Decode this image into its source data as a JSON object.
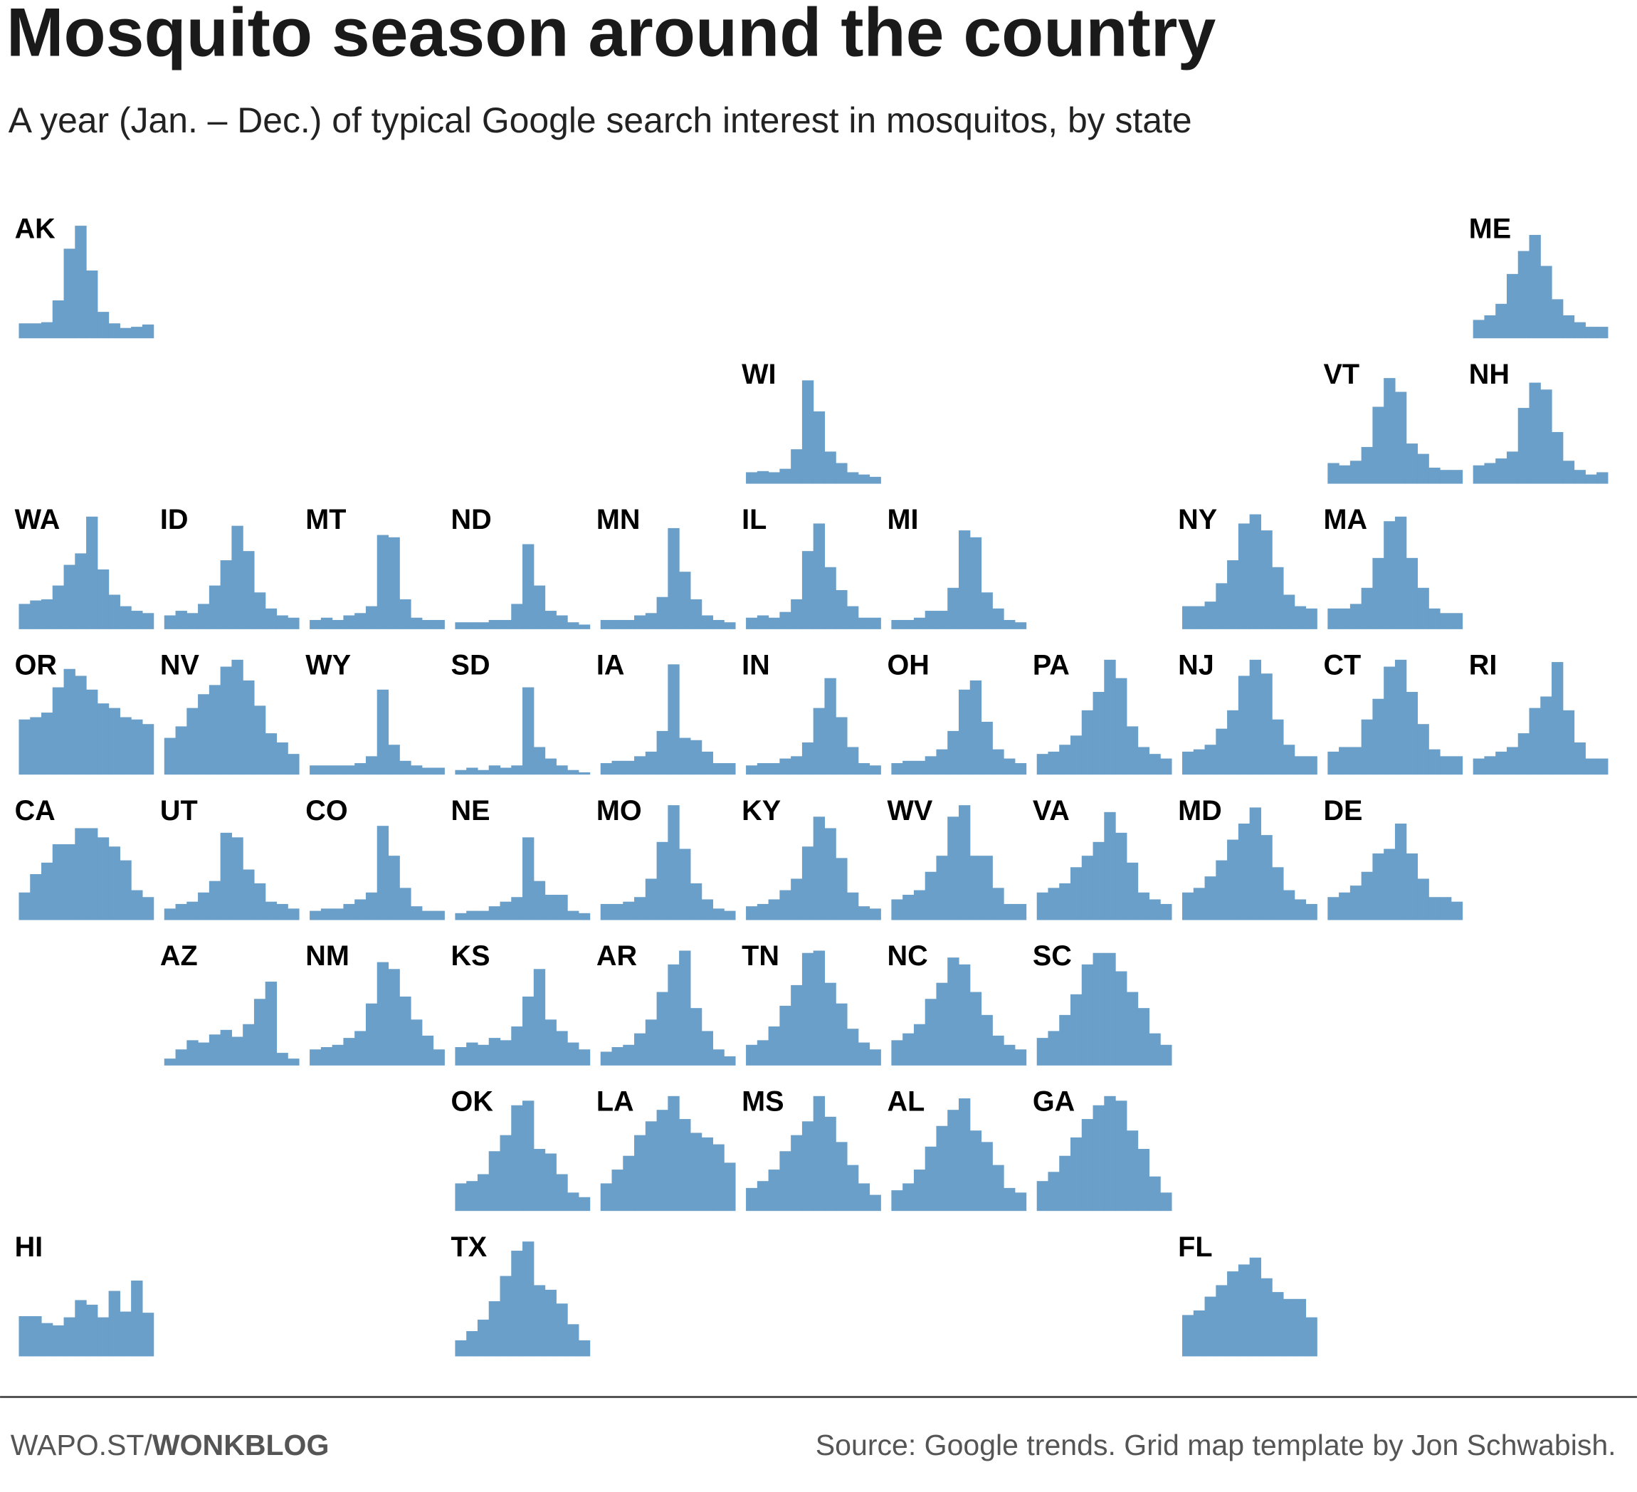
{
  "chart_data": {
    "type": "bar",
    "title": "Mosquito season around the country",
    "subtitle": "A year (Jan. – Dec.) of typical Google search interest in mosquitos, by state",
    "footer_brand": "WAPO.ST/",
    "footer_brand_bold": "WONKBLOG",
    "source": "Source: Google trends. Grid map template by Jon Schwabish.",
    "color": "#6a9fc9",
    "ylim": [
      0,
      100
    ],
    "series": [
      {
        "name": "AK",
        "values": [
          13,
          13,
          14,
          33,
          78,
          98,
          59,
          23,
          13,
          9,
          10,
          12
        ]
      },
      {
        "name": "ME",
        "values": [
          16,
          20,
          30,
          56,
          76,
          90,
          63,
          34,
          20,
          14,
          10,
          10
        ]
      },
      {
        "name": "WI",
        "values": [
          10,
          11,
          10,
          13,
          30,
          90,
          63,
          28,
          18,
          10,
          8,
          6
        ]
      },
      {
        "name": "VT",
        "values": [
          18,
          16,
          20,
          32,
          67,
          92,
          80,
          35,
          26,
          14,
          12,
          12
        ]
      },
      {
        "name": "NH",
        "values": [
          16,
          18,
          22,
          28,
          66,
          88,
          82,
          45,
          20,
          12,
          8,
          10
        ]
      },
      {
        "name": "WA",
        "values": [
          22,
          25,
          26,
          38,
          56,
          66,
          98,
          52,
          30,
          20,
          16,
          14
        ]
      },
      {
        "name": "ID",
        "values": [
          12,
          16,
          14,
          22,
          38,
          60,
          90,
          68,
          32,
          18,
          12,
          10
        ]
      },
      {
        "name": "MT",
        "values": [
          8,
          10,
          8,
          12,
          14,
          20,
          82,
          80,
          26,
          10,
          8,
          8
        ]
      },
      {
        "name": "ND",
        "values": [
          6,
          6,
          6,
          8,
          8,
          22,
          74,
          38,
          16,
          12,
          6,
          4
        ]
      },
      {
        "name": "MN",
        "values": [
          8,
          8,
          8,
          12,
          14,
          28,
          88,
          50,
          26,
          12,
          8,
          6
        ]
      },
      {
        "name": "IL",
        "values": [
          10,
          12,
          10,
          15,
          26,
          68,
          92,
          54,
          34,
          20,
          10,
          10
        ]
      },
      {
        "name": "MI",
        "values": [
          8,
          8,
          10,
          16,
          16,
          36,
          86,
          80,
          32,
          18,
          8,
          6
        ]
      },
      {
        "name": "NY",
        "values": [
          20,
          20,
          24,
          40,
          60,
          92,
          100,
          86,
          54,
          30,
          20,
          18
        ]
      },
      {
        "name": "MA",
        "values": [
          18,
          18,
          22,
          36,
          62,
          94,
          98,
          62,
          36,
          18,
          14,
          14
        ]
      },
      {
        "name": "OR",
        "values": [
          48,
          50,
          54,
          76,
          92,
          86,
          74,
          62,
          58,
          50,
          48,
          44
        ]
      },
      {
        "name": "NV",
        "values": [
          32,
          42,
          58,
          70,
          78,
          94,
          100,
          82,
          60,
          36,
          28,
          18
        ]
      },
      {
        "name": "WY",
        "values": [
          8,
          8,
          8,
          8,
          10,
          16,
          74,
          26,
          12,
          8,
          6,
          6
        ]
      },
      {
        "name": "SD",
        "values": [
          4,
          6,
          4,
          8,
          6,
          8,
          76,
          24,
          14,
          8,
          4,
          2
        ]
      },
      {
        "name": "IA",
        "values": [
          10,
          12,
          12,
          16,
          20,
          38,
          96,
          32,
          30,
          20,
          10,
          10
        ]
      },
      {
        "name": "IN",
        "values": [
          8,
          10,
          10,
          14,
          16,
          28,
          58,
          84,
          50,
          24,
          10,
          8
        ]
      },
      {
        "name": "OH",
        "values": [
          10,
          12,
          12,
          16,
          22,
          38,
          74,
          82,
          46,
          22,
          14,
          10
        ]
      },
      {
        "name": "PA",
        "values": [
          18,
          20,
          26,
          34,
          56,
          72,
          100,
          84,
          42,
          24,
          18,
          14
        ]
      },
      {
        "name": "NJ",
        "values": [
          20,
          22,
          26,
          40,
          56,
          86,
          100,
          88,
          48,
          26,
          16,
          16
        ]
      },
      {
        "name": "CT",
        "values": [
          20,
          24,
          24,
          48,
          66,
          94,
          100,
          72,
          44,
          22,
          16,
          16
        ]
      },
      {
        "name": "RI",
        "values": [
          14,
          16,
          20,
          24,
          36,
          58,
          68,
          98,
          56,
          28,
          14,
          14
        ]
      },
      {
        "name": "CA",
        "values": [
          24,
          40,
          50,
          66,
          66,
          80,
          80,
          72,
          64,
          52,
          26,
          20
        ]
      },
      {
        "name": "UT",
        "values": [
          10,
          14,
          16,
          24,
          34,
          76,
          72,
          44,
          32,
          16,
          14,
          10
        ]
      },
      {
        "name": "CO",
        "values": [
          8,
          10,
          10,
          14,
          18,
          24,
          82,
          56,
          28,
          12,
          8,
          8
        ]
      },
      {
        "name": "NE",
        "values": [
          6,
          8,
          8,
          12,
          16,
          20,
          72,
          34,
          22,
          22,
          8,
          6
        ]
      },
      {
        "name": "MO",
        "values": [
          14,
          14,
          16,
          20,
          36,
          68,
          100,
          62,
          32,
          18,
          10,
          8
        ]
      },
      {
        "name": "KY",
        "values": [
          12,
          14,
          18,
          26,
          36,
          64,
          90,
          80,
          54,
          24,
          12,
          10
        ]
      },
      {
        "name": "WV",
        "values": [
          18,
          22,
          26,
          42,
          56,
          90,
          100,
          56,
          56,
          28,
          14,
          14
        ]
      },
      {
        "name": "VA",
        "values": [
          24,
          28,
          32,
          46,
          56,
          68,
          94,
          76,
          50,
          24,
          18,
          14
        ]
      },
      {
        "name": "MD",
        "values": [
          24,
          28,
          38,
          52,
          70,
          84,
          98,
          74,
          46,
          26,
          18,
          14
        ]
      },
      {
        "name": "DE",
        "values": [
          20,
          24,
          30,
          42,
          58,
          62,
          84,
          58,
          36,
          20,
          20,
          16
        ]
      },
      {
        "name": "AZ",
        "values": [
          6,
          14,
          22,
          20,
          27,
          31,
          25,
          36,
          58,
          73,
          11,
          6
        ]
      },
      {
        "name": "NM",
        "values": [
          14,
          16,
          18,
          24,
          30,
          54,
          90,
          84,
          60,
          40,
          26,
          14
        ]
      },
      {
        "name": "KS",
        "values": [
          16,
          20,
          18,
          24,
          22,
          34,
          60,
          84,
          40,
          30,
          20,
          14
        ]
      },
      {
        "name": "AR",
        "values": [
          12,
          16,
          18,
          28,
          40,
          64,
          88,
          100,
          50,
          30,
          14,
          8
        ]
      },
      {
        "name": "TN",
        "values": [
          18,
          22,
          34,
          52,
          70,
          98,
          100,
          72,
          54,
          32,
          20,
          14
        ]
      },
      {
        "name": "NC",
        "values": [
          22,
          28,
          36,
          58,
          72,
          94,
          88,
          64,
          44,
          26,
          18,
          14
        ]
      },
      {
        "name": "SC",
        "values": [
          24,
          30,
          44,
          62,
          88,
          98,
          98,
          82,
          64,
          50,
          28,
          18
        ]
      },
      {
        "name": "OK",
        "values": [
          24,
          26,
          32,
          52,
          66,
          92,
          96,
          54,
          50,
          32,
          16,
          12
        ]
      },
      {
        "name": "LA",
        "values": [
          24,
          36,
          48,
          66,
          78,
          88,
          100,
          80,
          68,
          64,
          58,
          42
        ]
      },
      {
        "name": "MS",
        "values": [
          20,
          26,
          36,
          52,
          66,
          78,
          100,
          82,
          60,
          40,
          24,
          14
        ]
      },
      {
        "name": "AL",
        "values": [
          18,
          24,
          36,
          56,
          74,
          88,
          98,
          70,
          60,
          40,
          20,
          16
        ]
      },
      {
        "name": "GA",
        "values": [
          26,
          34,
          48,
          64,
          80,
          92,
          100,
          96,
          70,
          54,
          30,
          16
        ]
      },
      {
        "name": "HI",
        "values": [
          35,
          35,
          29,
          27,
          34,
          49,
          45,
          34,
          57,
          39,
          66,
          38
        ]
      },
      {
        "name": "TX",
        "values": [
          14,
          22,
          32,
          48,
          70,
          92,
          100,
          62,
          58,
          46,
          28,
          14
        ]
      },
      {
        "name": "FL",
        "values": [
          36,
          40,
          52,
          62,
          74,
          80,
          86,
          68,
          56,
          50,
          50,
          34
        ]
      }
    ]
  }
}
